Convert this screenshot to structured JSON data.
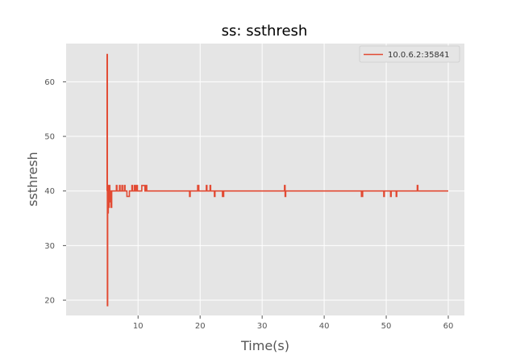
{
  "chart_data": {
    "type": "line",
    "title": "ss: ssthresh",
    "xlabel": "Time(s)",
    "ylabel": "ssthresh",
    "xlim": [
      -1.6,
      62.6
    ],
    "ylim": [
      17.2,
      67.0
    ],
    "xticks": [
      10,
      20,
      30,
      40,
      50,
      60
    ],
    "yticks": [
      20,
      30,
      40,
      50,
      60
    ],
    "grid": true,
    "legend_position": "top-right",
    "series": [
      {
        "name": "10.0.6.2:35841",
        "color": "#E24A33",
        "x": [
          5.0,
          5.0,
          5.05,
          5.05,
          5.1,
          5.1,
          5.15,
          5.15,
          5.2,
          5.2,
          5.25,
          5.25,
          5.35,
          5.35,
          5.45,
          5.45,
          5.55,
          5.55,
          5.65,
          5.65,
          5.75,
          5.75,
          5.85,
          5.85,
          6.0,
          6.0,
          6.5,
          6.5,
          6.6,
          6.6,
          7.0,
          7.0,
          7.1,
          7.1,
          7.4,
          7.4,
          7.5,
          7.5,
          7.8,
          7.8,
          7.9,
          7.9,
          8.2,
          8.2,
          8.6,
          8.6,
          9.0,
          9.0,
          9.1,
          9.1,
          9.4,
          9.4,
          9.6,
          9.6,
          9.8,
          9.8,
          9.9,
          9.9,
          10.6,
          10.6,
          11.1,
          11.1,
          11.3,
          11.3,
          11.4,
          11.4,
          18.3,
          18.3,
          18.4,
          18.4,
          19.6,
          19.6,
          19.8,
          19.8,
          21.0,
          21.0,
          21.1,
          21.1,
          21.6,
          21.6,
          21.7,
          21.7,
          22.3,
          22.3,
          22.4,
          22.4,
          23.6,
          23.6,
          23.8,
          23.8,
          33.6,
          33.6,
          33.7,
          33.7,
          33.8,
          33.8,
          46.0,
          46.0,
          46.2,
          46.2,
          49.6,
          49.6,
          49.7,
          49.7,
          50.7,
          50.7,
          50.8,
          50.8,
          51.6,
          51.6,
          51.7,
          51.7,
          55.0,
          55.0,
          55.1,
          55.1,
          60.0
        ],
        "y": [
          40,
          65,
          65,
          19,
          19,
          40,
          40,
          36,
          36,
          41,
          41,
          37,
          37,
          41,
          41,
          38,
          38,
          40,
          40,
          37,
          37,
          40,
          40,
          40,
          40,
          40,
          40,
          41,
          41,
          40,
          40,
          41,
          41,
          40,
          40,
          41,
          41,
          40,
          40,
          41,
          41,
          40,
          40,
          39,
          39,
          40,
          40,
          41,
          41,
          40,
          40,
          41,
          41,
          40,
          40,
          41,
          41,
          40,
          40,
          41,
          41,
          40,
          40,
          41,
          41,
          40,
          40,
          39,
          39,
          40,
          40,
          41,
          41,
          40,
          40,
          41,
          41,
          40,
          40,
          41,
          41,
          40,
          40,
          39,
          39,
          40,
          40,
          39,
          39,
          40,
          40,
          41,
          41,
          39,
          39,
          40,
          40,
          39,
          39,
          40,
          40,
          39,
          39,
          40,
          40,
          39,
          39,
          40,
          40,
          39,
          39,
          40,
          40,
          41,
          41,
          40,
          40
        ]
      }
    ]
  }
}
